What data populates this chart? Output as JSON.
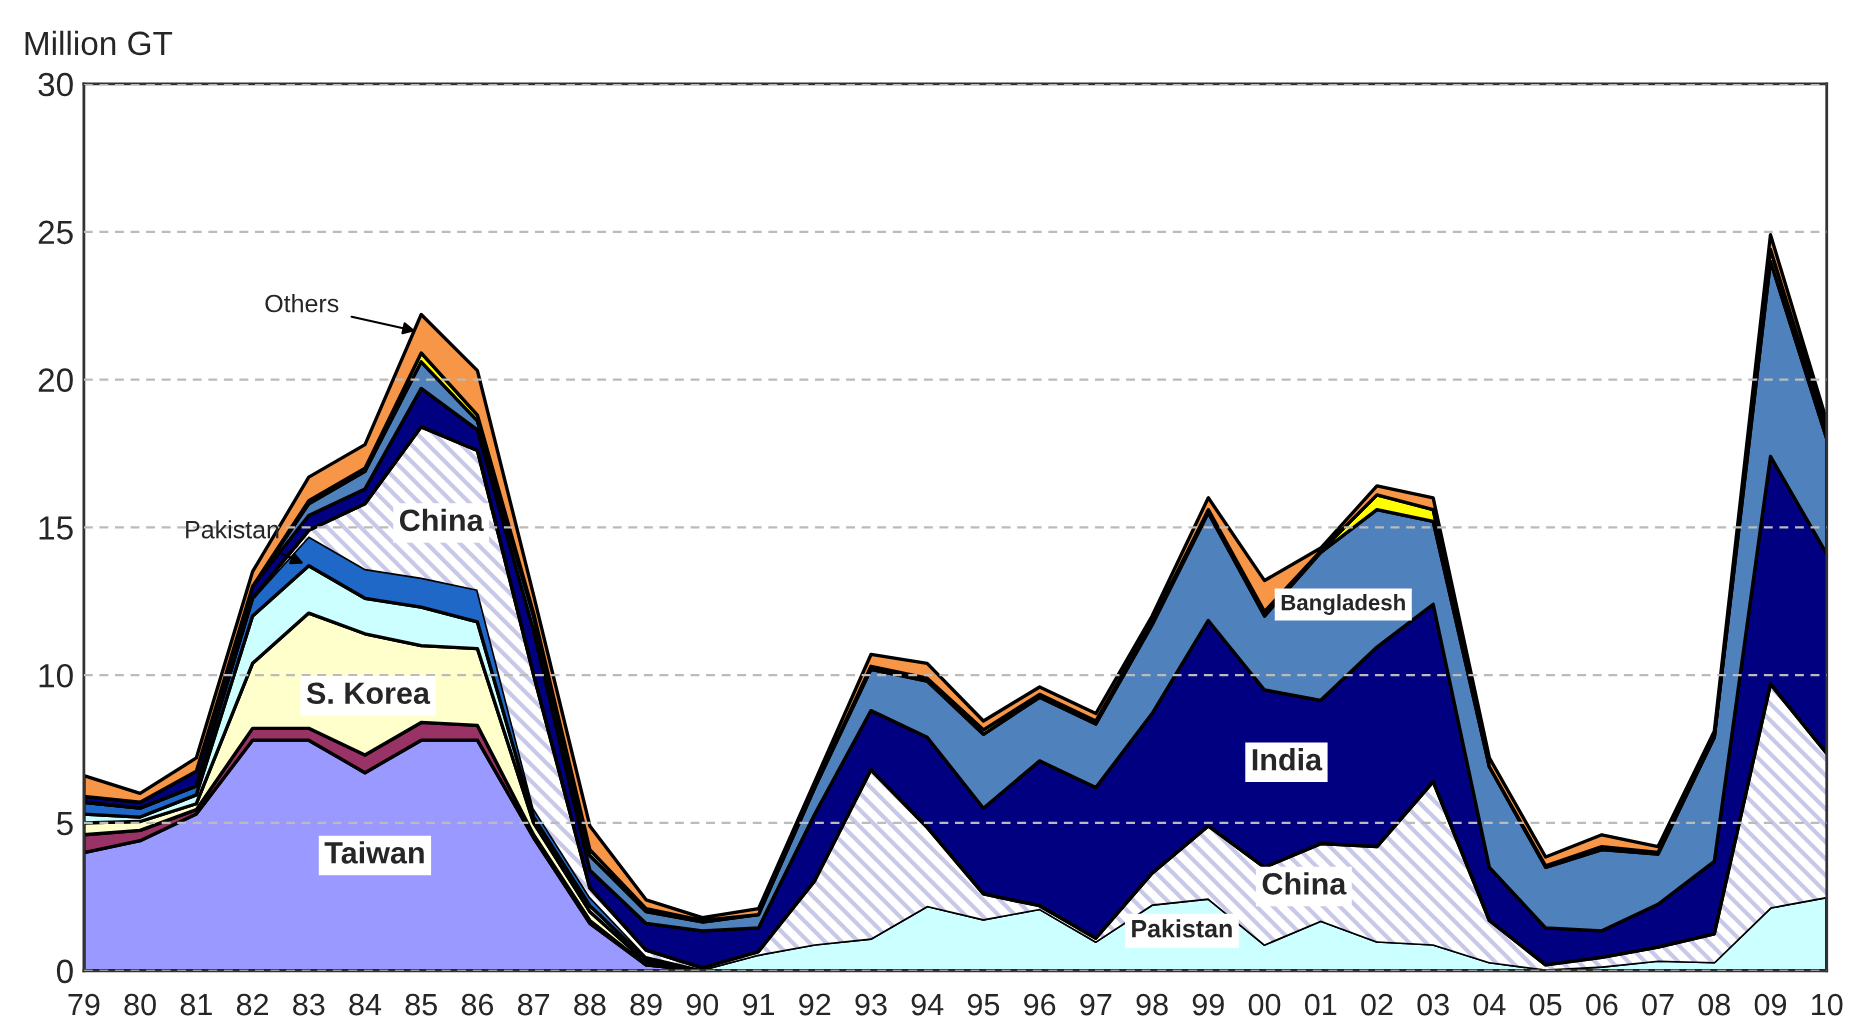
{
  "chart_data": {
    "type": "area",
    "stacked": true,
    "ylabel": "Million GT",
    "categories": [
      "79",
      "80",
      "81",
      "82",
      "83",
      "84",
      "85",
      "86",
      "87",
      "88",
      "89",
      "90",
      "91",
      "92",
      "93",
      "94",
      "95",
      "96",
      "97",
      "98",
      "99",
      "00",
      "01",
      "02",
      "03",
      "04",
      "05",
      "06",
      "07",
      "08",
      "09",
      "10"
    ],
    "series": [
      {
        "color": "#9999ff",
        "values": [
          4.0,
          4.4,
          5.3,
          7.8,
          7.8,
          6.7,
          7.8,
          7.8,
          4.5,
          1.6,
          0.2,
          0,
          0,
          0,
          0,
          0,
          0,
          0,
          0,
          0,
          0,
          0,
          0,
          0,
          0,
          0,
          0,
          0,
          0,
          0,
          0,
          0
        ]
      },
      {
        "color": "#993366",
        "values": [
          0.6,
          0.35,
          0.15,
          0.4,
          0.4,
          0.6,
          0.6,
          0.5,
          0.1,
          0.1,
          0,
          0,
          0,
          0,
          0,
          0,
          0,
          0,
          0,
          0,
          0,
          0,
          0,
          0,
          0,
          0,
          0,
          0,
          0,
          0,
          0,
          0
        ]
      },
      {
        "color": "#ffffcc",
        "values": [
          0.4,
          0.3,
          0.2,
          2.2,
          3.9,
          4.1,
          2.6,
          2.6,
          0.4,
          0.3,
          0.1,
          0,
          0,
          0,
          0,
          0,
          0,
          0,
          0,
          0,
          0,
          0,
          0,
          0,
          0,
          0,
          0,
          0,
          0,
          0,
          0,
          0
        ]
      },
      {
        "color": "#ccffff",
        "values": [
          0.3,
          0.15,
          0.3,
          1.6,
          1.6,
          1.2,
          1.3,
          0.9,
          0.2,
          0.2,
          0.1,
          0.05,
          0.55,
          0.9,
          1.1,
          2.2,
          1.75,
          2.1,
          1.0,
          2.25,
          2.45,
          0.9,
          1.7,
          1.0,
          0.9,
          0.3,
          0.05,
          0.15,
          0.35,
          0.3,
          2.15,
          2.5
        ]
      },
      {
        "color": "#1f68c8",
        "values": [
          0.4,
          0.3,
          0.3,
          0.6,
          1.0,
          1.0,
          1.0,
          1.1,
          0.3,
          0.3,
          0.1,
          0,
          0,
          0,
          0,
          0,
          0,
          0,
          0,
          0,
          0,
          0,
          0,
          0,
          0,
          0,
          0,
          0,
          0,
          0,
          0,
          0
        ]
      },
      {
        "color": "#c8c8e8",
        "values": [
          0,
          0,
          0,
          0,
          0.2,
          2.2,
          5.1,
          4.7,
          4.5,
          0.3,
          0.2,
          0.05,
          0.1,
          2.15,
          5.7,
          2.65,
          0.85,
          0.1,
          0.1,
          1.05,
          2.45,
          2.6,
          2.6,
          3.2,
          5.5,
          1.4,
          0.15,
          0.3,
          0.45,
          0.95,
          7.55,
          4.85
        ]
      },
      {
        "color": "#000080",
        "values": [
          0.2,
          0.2,
          0.5,
          0.4,
          0.5,
          0.5,
          1.3,
          0.7,
          1.5,
          0.6,
          0.9,
          1.25,
          0.8,
          2.25,
          2.0,
          3.05,
          2.9,
          4.9,
          5.1,
          5.4,
          6.95,
          6.0,
          4.85,
          6.75,
          6.0,
          1.8,
          1.25,
          0.9,
          1.45,
          2.45,
          7.7,
          6.75
        ]
      },
      {
        "color": "#4f81bd",
        "values": [
          0,
          0,
          0,
          0,
          0.4,
          0.6,
          0.9,
          0.3,
          0.5,
          0.5,
          0.4,
          0.3,
          0.45,
          0.9,
          1.4,
          1.9,
          2.5,
          2.15,
          2.15,
          3.0,
          3.65,
          2.5,
          5.0,
          4.65,
          2.8,
          3.4,
          2.05,
          2.75,
          1.7,
          4.2,
          6.6,
          3.9
        ]
      },
      {
        "color": "#ffff00",
        "values": [
          0,
          0,
          0,
          0,
          0.1,
          0.1,
          0.3,
          0.2,
          0.1,
          0.2,
          0.1,
          0.05,
          0,
          0,
          0.1,
          0.1,
          0.15,
          0.1,
          0.1,
          0.1,
          0.1,
          0.15,
          0.05,
          0.5,
          0.4,
          0,
          0.05,
          0.1,
          0.05,
          0,
          0.4,
          0.3
        ]
      },
      {
        "color": "#f79646",
        "values": [
          0.7,
          0.3,
          0.45,
          0.5,
          0.8,
          0.8,
          1.3,
          1.5,
          0.6,
          0.8,
          0.3,
          0.1,
          0.2,
          0.2,
          0.4,
          0.5,
          0.3,
          0.25,
          0.25,
          0.2,
          0.4,
          1.05,
          0.1,
          0.3,
          0.4,
          0.3,
          0.3,
          0.4,
          0.2,
          0.2,
          0.5,
          0.3
        ]
      }
    ],
    "ylim": [
      0,
      30
    ],
    "yticks": [
      0,
      5,
      10,
      15,
      20,
      25,
      30
    ],
    "grid": "y",
    "legend": false,
    "annotations": [
      "Taiwan",
      "S. Korea",
      "China",
      {
        "text": "Pakistan",
        "x": "83",
        "y": 13.7
      },
      {
        "text": "Others",
        "x": "85",
        "y": 21.6
      },
      "Bangladesh",
      "India",
      "China",
      "Pakistan"
    ]
  }
}
